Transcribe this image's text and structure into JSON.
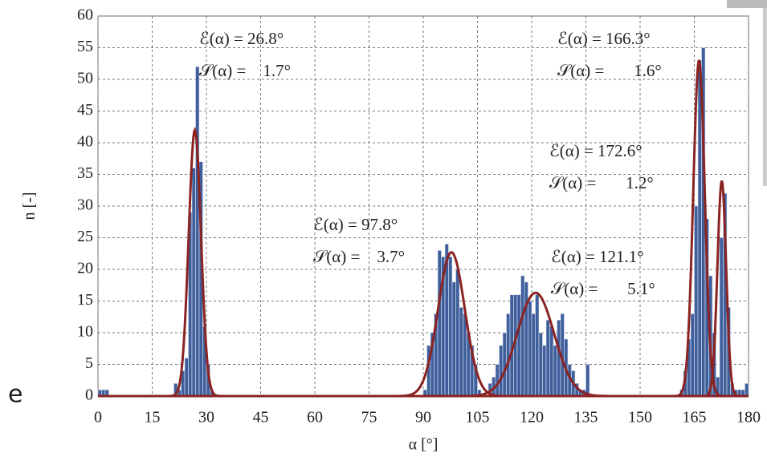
{
  "side_text": "e",
  "chart_data": {
    "type": "histogram",
    "xlabel": "α [°]",
    "ylabel": "n [-]",
    "bins": [
      0,
      1,
      2,
      3,
      4,
      5,
      6,
      7,
      8,
      9,
      10,
      11,
      12,
      13,
      14,
      15,
      16,
      17,
      18,
      19,
      20,
      21,
      22,
      23,
      24,
      25,
      26,
      27,
      28,
      29,
      30,
      31,
      32,
      33,
      34,
      35,
      36,
      37,
      38,
      39,
      40,
      41,
      42,
      43,
      44,
      45,
      46,
      47,
      48,
      49,
      50,
      51,
      52,
      53,
      54,
      55,
      56,
      57,
      58,
      59,
      60,
      61,
      62,
      63,
      64,
      65,
      66,
      67,
      68,
      69,
      70,
      71,
      72,
      73,
      74,
      75,
      76,
      77,
      78,
      79,
      80,
      81,
      82,
      83,
      84,
      85,
      86,
      87,
      88,
      89,
      90,
      91,
      92,
      93,
      94,
      95,
      96,
      97,
      98,
      99,
      100,
      101,
      102,
      103,
      104,
      105,
      106,
      107,
      108,
      109,
      110,
      111,
      112,
      113,
      114,
      115,
      116,
      117,
      118,
      119,
      120,
      121,
      122,
      123,
      124,
      125,
      126,
      127,
      128,
      129,
      130,
      131,
      132,
      133,
      134,
      135,
      136,
      137,
      138,
      139,
      140,
      141,
      142,
      143,
      144,
      145,
      146,
      147,
      148,
      149,
      150,
      151,
      152,
      153,
      154,
      155,
      156,
      157,
      158,
      159,
      160,
      161,
      162,
      163,
      164,
      165,
      166,
      167,
      168,
      169,
      170,
      171,
      172,
      173,
      174,
      175,
      176,
      177,
      178,
      179,
      180
    ],
    "values": [
      1,
      1,
      1,
      0,
      0,
      0,
      0,
      0,
      0,
      0,
      0,
      0,
      0,
      0,
      0,
      0,
      0,
      0,
      0,
      0,
      0,
      2,
      1,
      4,
      6,
      29,
      36,
      52,
      37,
      11,
      5,
      1,
      0,
      0,
      0,
      0,
      0,
      0,
      0,
      0,
      0,
      0,
      0,
      0,
      0,
      0,
      0,
      0,
      0,
      0,
      0,
      0,
      0,
      0,
      0,
      0,
      0,
      0,
      0,
      0,
      0,
      0,
      0,
      0,
      0,
      0,
      0,
      0,
      0,
      0,
      0,
      0,
      0,
      0,
      0,
      0,
      0,
      0,
      0,
      0,
      0,
      0,
      0,
      0,
      0,
      0,
      0,
      0,
      0,
      0,
      1,
      8,
      10,
      13,
      23,
      22,
      24,
      22,
      18,
      20,
      14,
      13,
      10,
      8,
      5,
      1,
      0,
      0,
      2,
      3,
      5,
      8,
      10,
      13,
      16,
      16,
      16,
      19,
      18,
      15,
      13,
      16,
      10,
      8,
      12,
      11,
      8,
      12,
      13,
      9,
      5,
      4,
      2,
      1,
      1,
      5,
      0,
      0,
      0,
      0,
      0,
      0,
      0,
      0,
      0,
      0,
      0,
      0,
      0,
      0,
      0,
      0,
      0,
      0,
      0,
      0,
      0,
      0,
      0,
      0,
      0,
      1,
      4,
      9,
      13,
      30,
      53,
      55,
      28,
      19,
      10,
      3,
      25,
      32,
      14,
      2,
      1,
      1,
      1,
      2
    ],
    "color": "#3f5f9c",
    "fit_color": "#8b2323",
    "fits": [
      {
        "mean": {
          "value": 26.8,
          "label": "ℰ(α) = 26.8°"
        },
        "sd": {
          "value": 1.7,
          "label": "𝒮(α) =    1.7°"
        },
        "peak": 42
      },
      {
        "mean": {
          "value": 97.8,
          "label": "ℰ(α) = 97.8°"
        },
        "sd": {
          "value": 3.7,
          "label": "𝒮(α) =    3.7°"
        },
        "peak": 22.7
      },
      {
        "mean": {
          "value": 121.1,
          "label": "ℰ(α) = 121.1°"
        },
        "sd": {
          "value": 5.1,
          "label": "𝒮(α) =       5.1°"
        },
        "peak": 16.3
      },
      {
        "mean": {
          "value": 166.3,
          "label": "ℰ(α) = 166.3°"
        },
        "sd": {
          "value": 1.6,
          "label": "𝒮(α) =       1.6°"
        },
        "peak": 53
      },
      {
        "mean": {
          "value": 172.6,
          "label": "ℰ(α) = 172.6°"
        },
        "sd": {
          "value": 1.2,
          "label": "𝒮(α) =       1.2°"
        },
        "peak": 34
      }
    ],
    "xlim": [
      0,
      180
    ],
    "ylim": [
      0,
      60
    ],
    "xticks": [
      0,
      15,
      30,
      45,
      60,
      75,
      90,
      105,
      120,
      135,
      150,
      165,
      180
    ],
    "yticks": [
      0,
      5,
      10,
      15,
      20,
      25,
      30,
      35,
      40,
      45,
      50,
      55,
      60
    ],
    "grid": true
  }
}
